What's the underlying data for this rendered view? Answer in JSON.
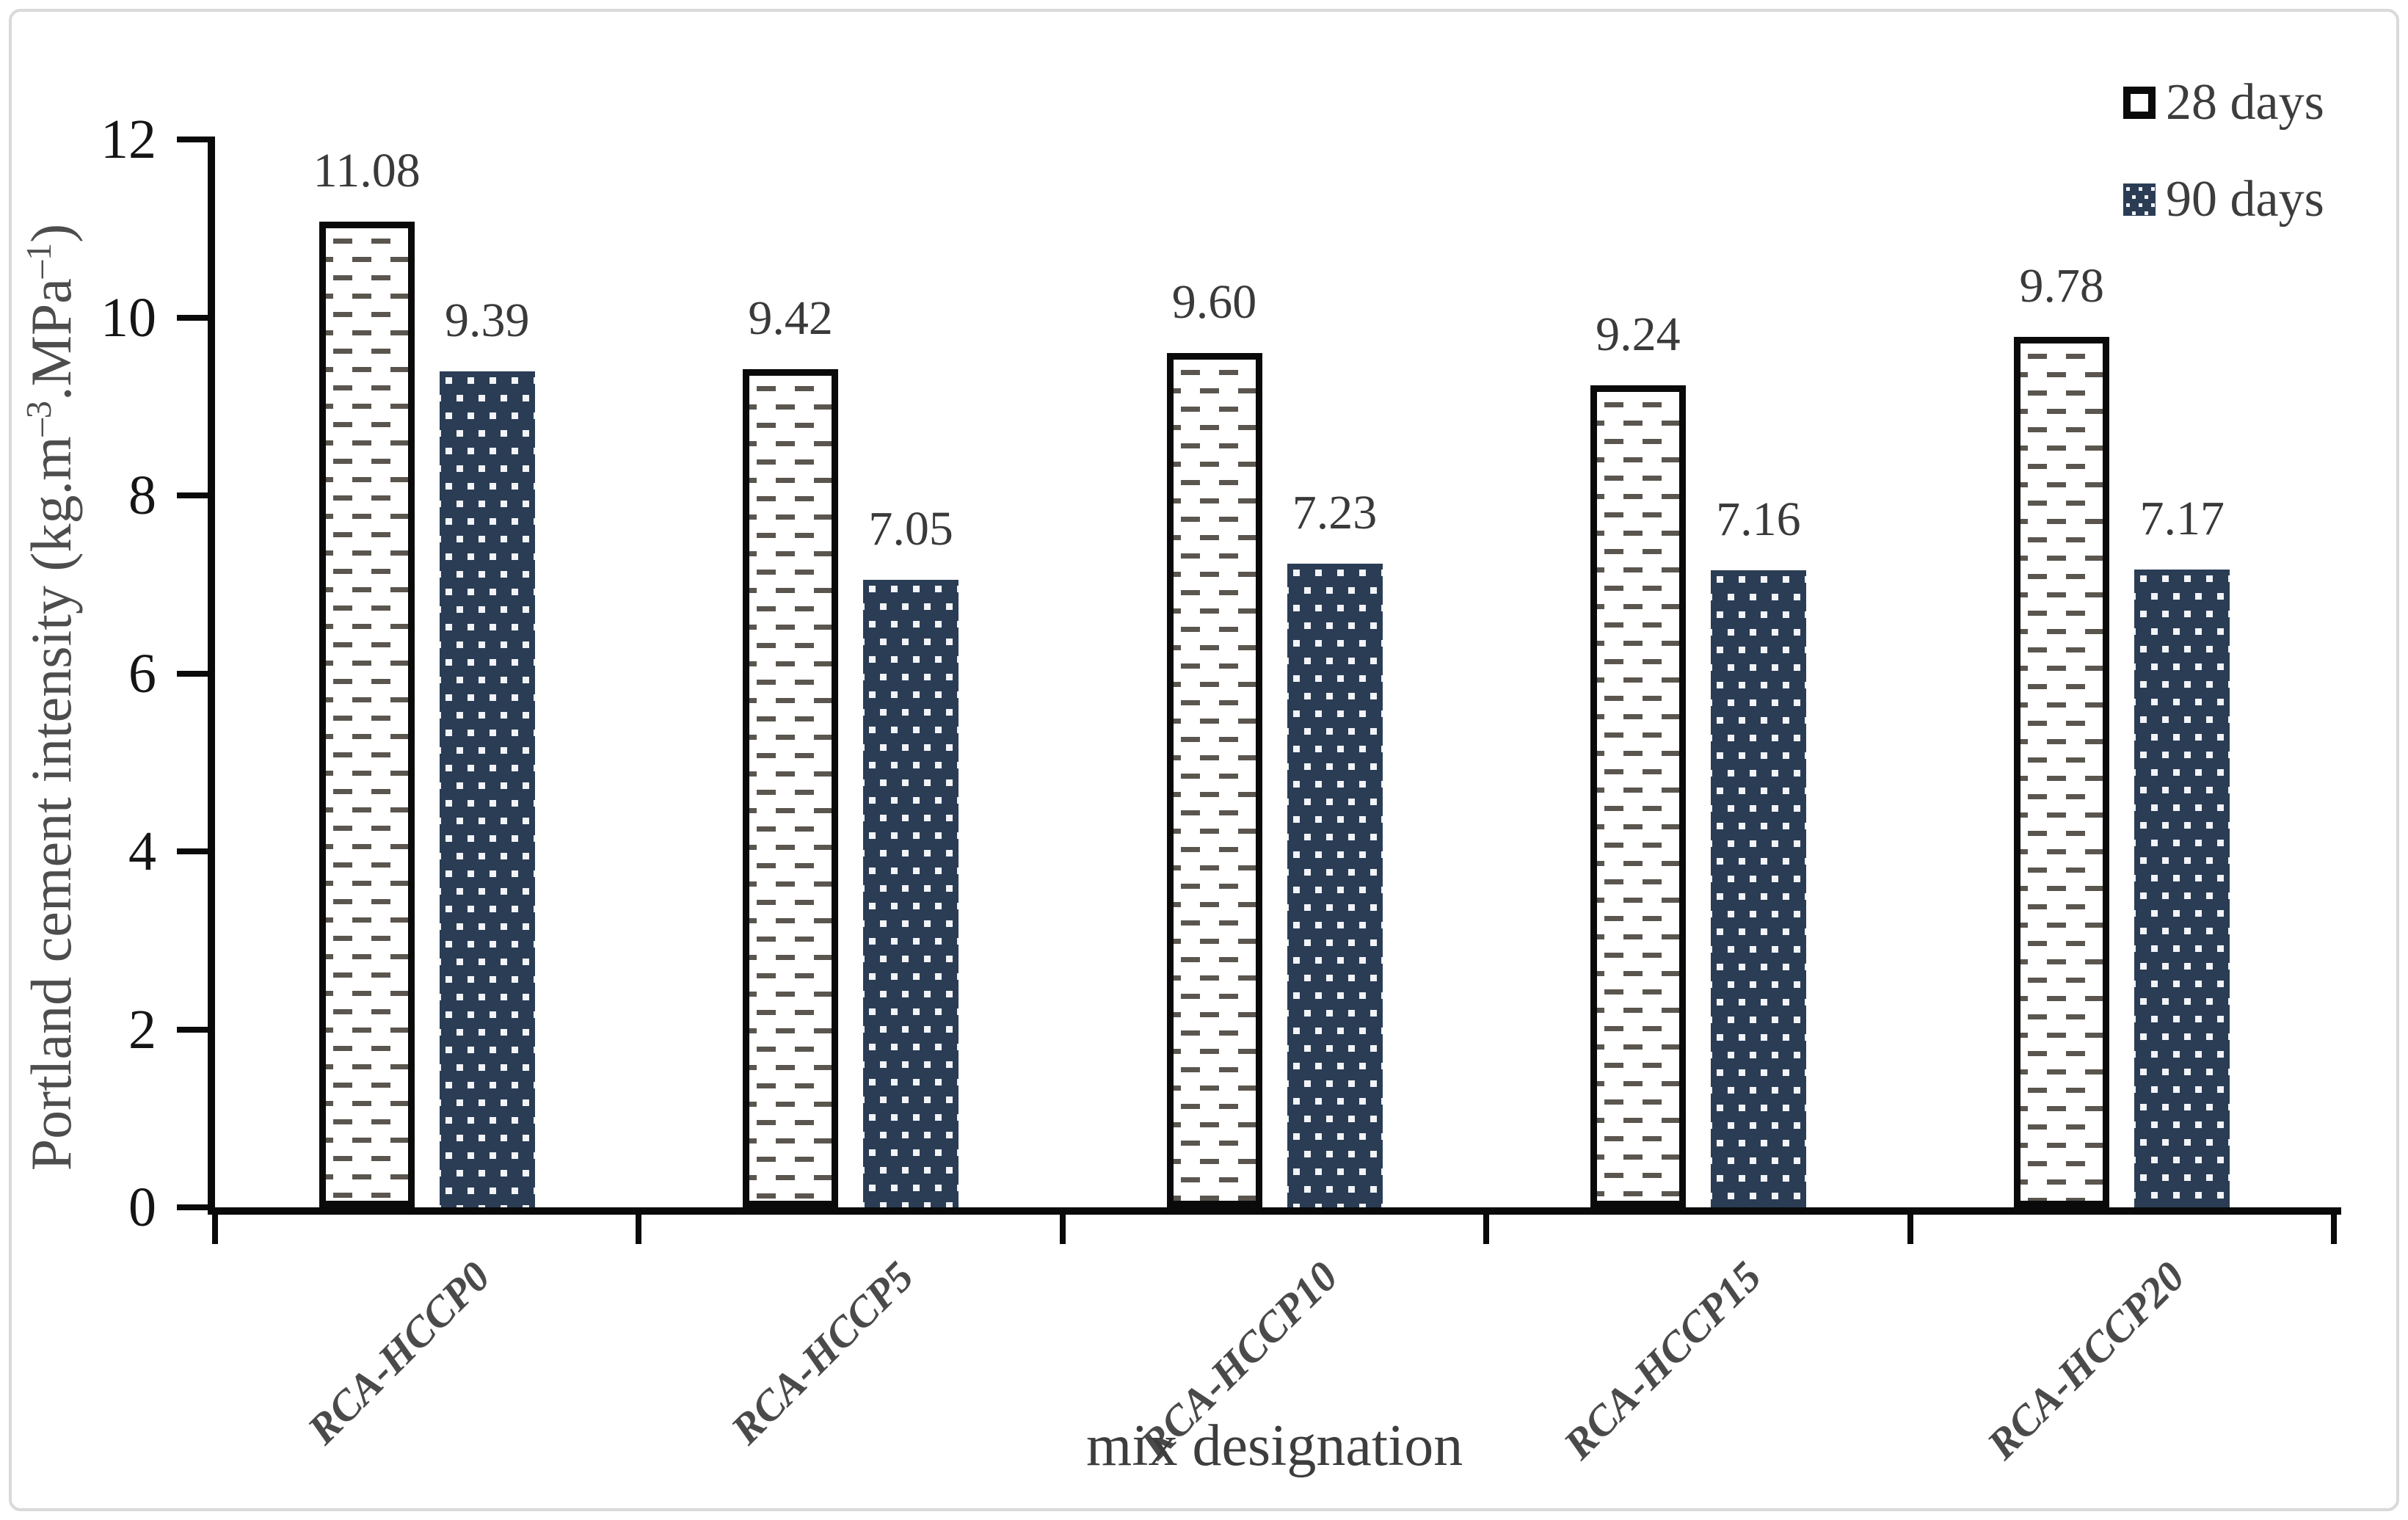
{
  "figure": {
    "background": "#ffffff",
    "frame_color": "#d9d9d9"
  },
  "chart_data": {
    "type": "bar",
    "title": "",
    "xlabel": "mix designation",
    "ylabel": "Portland cement intensity (kg.m–3.MPa–1)",
    "ylabel_parts": {
      "prefix": "Portland cement intensity (kg.m",
      "sup1": "–3",
      "mid": ".MPa",
      "sup2": "–1",
      "suffix": ")"
    },
    "categories": [
      "RCA-HCCP0",
      "RCA-HCCP5",
      "RCA-HCCP10",
      "RCA-HCCP15",
      "RCA-HCCP20"
    ],
    "series": [
      {
        "name": "28 days",
        "values": [
          11.08,
          9.42,
          9.6,
          9.24,
          9.78
        ],
        "labels": [
          "11.08",
          "9.42",
          "9.60",
          "9.24",
          "9.78"
        ],
        "fill": "#ffffff",
        "pattern": "gray-dash-on-white",
        "border": "#0a0a0a"
      },
      {
        "name": "90 days",
        "values": [
          9.39,
          7.05,
          7.23,
          7.16,
          7.17
        ],
        "labels": [
          "9.39",
          "7.05",
          "7.23",
          "7.16",
          "7.17"
        ],
        "fill": "#2b3d55",
        "pattern": "white-dots-on-navy",
        "border": "none"
      }
    ],
    "ylim": [
      0,
      12
    ],
    "yticks": [
      "0",
      "2",
      "4",
      "6",
      "8",
      "10",
      "12"
    ],
    "grid": false,
    "legend_position": "top-right",
    "colors": {
      "axis": "#0a0a0a",
      "navy": "#2b3d55",
      "dash_gray": "#5a554e",
      "tick_label": "#151515",
      "value_label": "#3a3a3a",
      "category_label": "#4a4a4a"
    }
  }
}
